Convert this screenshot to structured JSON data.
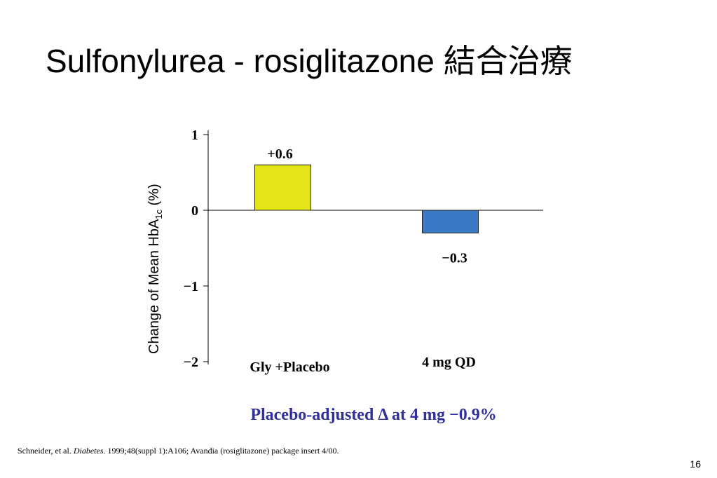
{
  "slide": {
    "title": "Sulfonylurea - rosiglitazone 結合治療",
    "citation": [
      "Schneider, et al. ",
      "Diabetes",
      ". 1999;48(suppl 1):A106; Avandia (rosiglitazone) package insert 4/00."
    ],
    "page_number": "16"
  },
  "chart_data": {
    "type": "bar",
    "y_label": {
      "text": "Change of Mean HbA",
      "subscript": "1c",
      "suffix": " (%)"
    },
    "categories": [
      "Gly +Placebo",
      "4 mg QD"
    ],
    "values": [
      0.6,
      -0.3
    ],
    "value_labels": [
      "+0.6",
      "−0.3"
    ],
    "colors": [
      "#e4e41a",
      "#3a7ac4"
    ],
    "ylim": [
      -2,
      1
    ],
    "yticks": [
      1,
      0,
      {
        "value": -1,
        "label": "−1"
      },
      {
        "value": -2,
        "label": "−2"
      }
    ],
    "annotation": "Placebo-adjusted Δ at 4 mg −0.9%",
    "annotation_color": "#30309a"
  }
}
